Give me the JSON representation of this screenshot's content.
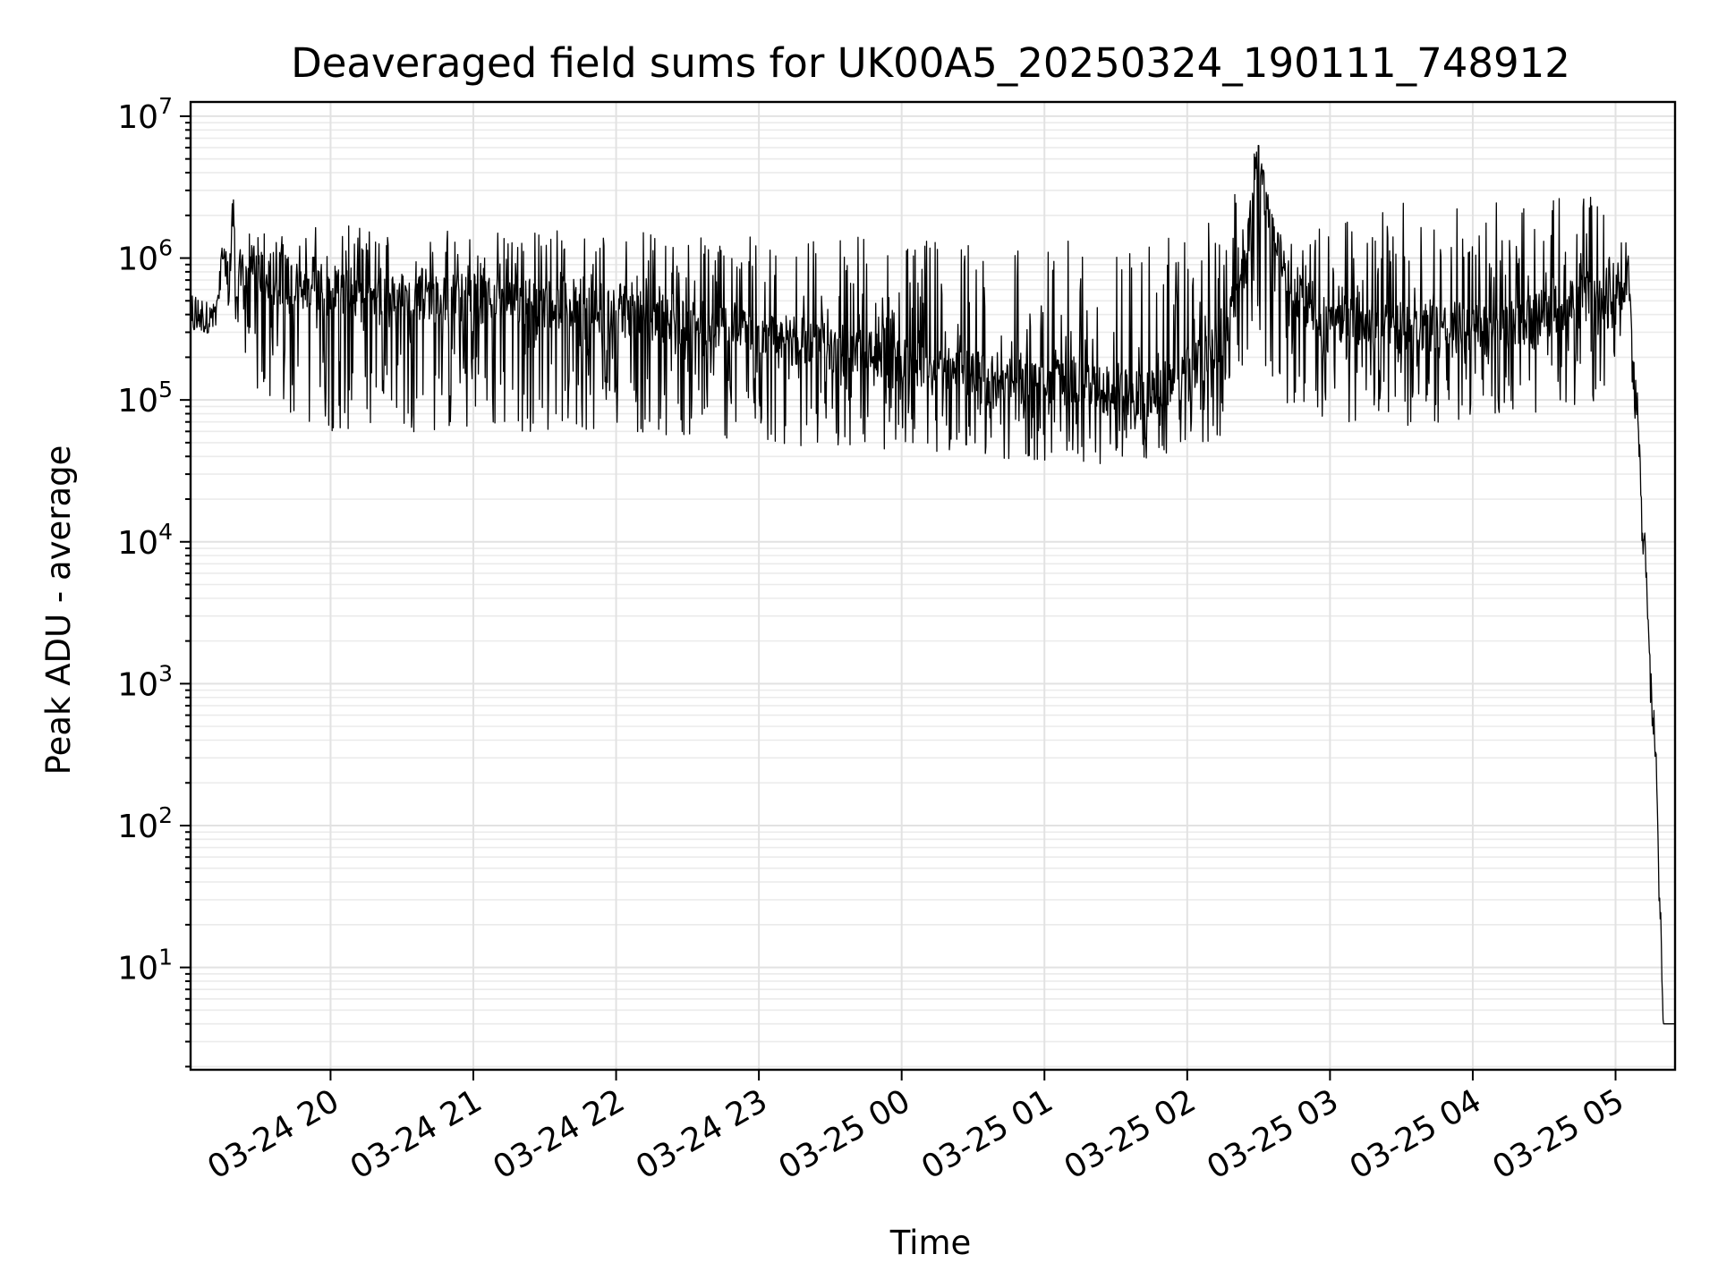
{
  "chart_data": {
    "type": "line",
    "title": "Deaveraged field sums for UK00A5_20250324_190111_748912",
    "xlabel": "Time",
    "ylabel": "Peak ADU - average",
    "yscale": "log",
    "ylim": [
      1.9,
      12600000
    ],
    "xlim": [
      "2025-03-24 19:01:11",
      "2025-03-25 05:25:00"
    ],
    "grid": true,
    "line_color": "#000000",
    "x_ticks": [
      "03-24 20",
      "03-24 21",
      "03-24 22",
      "03-24 23",
      "03-25 00",
      "03-25 01",
      "03-25 02",
      "03-25 03",
      "03-25 04",
      "03-25 05"
    ],
    "x_tick_times": [
      "2025-03-24 20:00",
      "2025-03-24 21:00",
      "2025-03-24 22:00",
      "2025-03-24 23:00",
      "2025-03-25 00:00",
      "2025-03-25 01:00",
      "2025-03-25 02:00",
      "2025-03-25 03:00",
      "2025-03-25 04:00",
      "2025-03-25 05:00"
    ],
    "y_ticks": [
      {
        "value": 10,
        "base": "10",
        "exp": "1"
      },
      {
        "value": 100,
        "base": "10",
        "exp": "2"
      },
      {
        "value": 1000,
        "base": "10",
        "exp": "3"
      },
      {
        "value": 10000,
        "base": "10",
        "exp": "4"
      },
      {
        "value": 100000,
        "base": "10",
        "exp": "5"
      },
      {
        "value": 1000000,
        "base": "10",
        "exp": "6"
      },
      {
        "value": 10000000,
        "base": "10",
        "exp": "7"
      }
    ],
    "series": [
      {
        "x": [
          "2025-03-24 19:01:11",
          "2025-03-24 19:05",
          "2025-03-24 19:10",
          "2025-03-24 19:12",
          "2025-03-24 19:15",
          "2025-03-24 19:18",
          "2025-03-24 19:19",
          "2025-03-24 19:20",
          "2025-03-24 19:25",
          "2025-03-24 19:30",
          "2025-03-24 19:45",
          "2025-03-24 20:00",
          "2025-03-24 20:30",
          "2025-03-24 21:00",
          "2025-03-24 21:30",
          "2025-03-24 22:00",
          "2025-03-24 22:30",
          "2025-03-24 23:00",
          "2025-03-24 23:30",
          "2025-03-25 00:00",
          "2025-03-25 00:30",
          "2025-03-25 01:00",
          "2025-03-25 01:20",
          "2025-03-25 01:45",
          "2025-03-25 02:00",
          "2025-03-25 02:15",
          "2025-03-25 02:25",
          "2025-03-25 02:30",
          "2025-03-25 02:35",
          "2025-03-25 02:45",
          "2025-03-25 03:00",
          "2025-03-25 03:30",
          "2025-03-25 04:00",
          "2025-03-25 04:30",
          "2025-03-25 04:50",
          "2025-03-25 05:00",
          "2025-03-25 05:05",
          "2025-03-25 05:07",
          "2025-03-25 05:09",
          "2025-03-25 05:11",
          "2025-03-25 05:13",
          "2025-03-25 05:15",
          "2025-03-25 05:17",
          "2025-03-25 05:18",
          "2025-03-25 05:19",
          "2025-03-25 05:20",
          "2025-03-25 05:25"
        ],
        "y": [
          400000,
          380000,
          420000,
          400000,
          1200000,
          900000,
          3300000,
          700000,
          900000,
          800000,
          650000,
          600000,
          550000,
          520000,
          480000,
          420000,
          360000,
          300000,
          240000,
          180000,
          150000,
          140000,
          120000,
          110000,
          160000,
          250000,
          1000000,
          6300000,
          1500000,
          600000,
          380000,
          330000,
          330000,
          400000,
          550000,
          620000,
          750000,
          200000,
          90000,
          20000,
          6000,
          1000,
          300,
          50,
          20,
          4,
          4
        ],
        "low": [
          300000,
          290000,
          300000,
          300000,
          450000,
          400000,
          90000,
          250000,
          200000,
          90000,
          70000,
          60000,
          60000,
          58000,
          60000,
          60000,
          55000,
          50000,
          45000,
          45000,
          40000,
          37000,
          35000,
          38000,
          42000,
          55000,
          150000,
          300000,
          120000,
          60000,
          70000,
          65000,
          70000,
          80000,
          85000,
          180000,
          250000,
          100000,
          50000,
          10000,
          3000,
          500,
          100,
          30,
          10,
          4,
          4
        ],
        "high": [
          650000,
          500000,
          480000,
          460000,
          1500000,
          1300000,
          3300000,
          1100000,
          1500000,
          1700000,
          1700000,
          1700000,
          1650000,
          1600000,
          1600000,
          1550000,
          1500000,
          1500000,
          1450000,
          1400000,
          1400000,
          1350000,
          1300000,
          1300000,
          1500000,
          2000000,
          4500000,
          6300000,
          2800000,
          1200000,
          2000000,
          2500000,
          2500000,
          2500000,
          3800000,
          3800000,
          2000000,
          300000,
          150000,
          30000,
          8000,
          1200,
          400,
          60,
          25,
          4,
          4
        ]
      }
    ]
  }
}
